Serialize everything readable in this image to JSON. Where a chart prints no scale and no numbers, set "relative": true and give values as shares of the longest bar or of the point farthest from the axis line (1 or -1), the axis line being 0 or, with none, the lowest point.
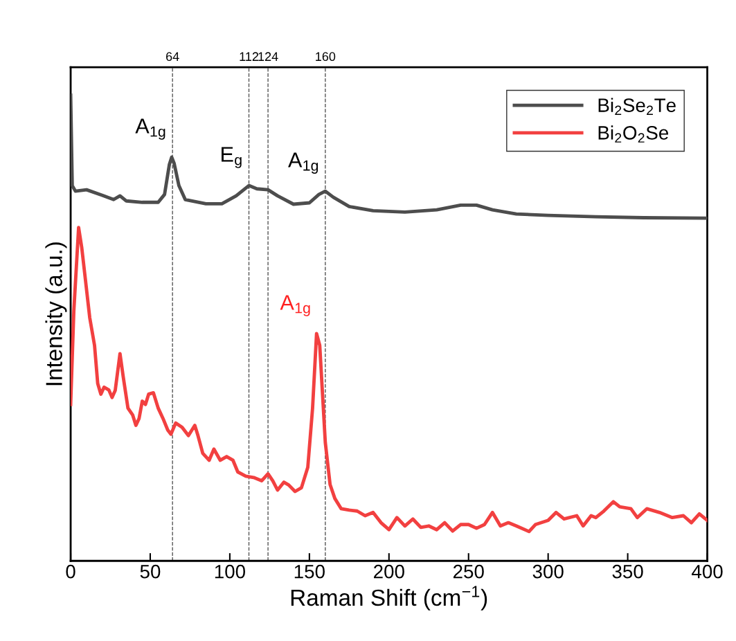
{
  "chart_data": {
    "type": "line",
    "relative": true,
    "xlabel": "Raman Shift (cm$^{−1}$)",
    "ylabel": "Intensity (a.u.)",
    "xlim": [
      0,
      400
    ],
    "xticks": [
      0,
      50,
      100,
      150,
      200,
      250,
      300,
      350,
      400
    ],
    "x2lim": [
      0,
      400
    ],
    "x2ticks": [
      64,
      112,
      124,
      160
    ],
    "legend": "top right",
    "grid": false,
    "marker": "none",
    "line_style": "solid",
    "ref_lines": [
      {
        "axis": "x",
        "value": 64,
        "color": "#555555",
        "line_style": "dashed"
      },
      {
        "axis": "x",
        "value": 112,
        "color": "#555555",
        "line_style": "dashed"
      },
      {
        "axis": "x",
        "value": 124,
        "color": "#555555",
        "line_style": "dashed"
      },
      {
        "axis": "x",
        "value": 160,
        "color": "#555555",
        "line_style": "dashed"
      }
    ],
    "annotations": [
      {
        "text": "A$_{1g}$",
        "x": 64,
        "y": 0.867
      },
      {
        "text": "E$_{g}$",
        "x": 112,
        "y": 0.806
      },
      {
        "text": "A$_{1g}$",
        "x": 160,
        "y": 0.794
      },
      {
        "text": "A$_{1g}$",
        "x": 155,
        "y": 0.488
      }
    ],
    "series": [
      {
        "name": "Bi$_{2}$Se$_{2}$Te",
        "color": "#4d4d4d",
        "x": [
          0,
          1,
          3,
          10,
          20,
          27,
          31,
          35,
          45,
          55,
          59,
          62,
          63.5,
          65,
          68,
          72,
          85,
          95,
          104,
          112,
          117,
          124,
          130,
          140,
          150,
          156,
          160,
          165,
          175,
          190,
          210,
          230,
          245,
          255,
          265,
          280,
          300,
          330,
          360,
          400
        ],
        "values": [
          1.0,
          0.806,
          0.794,
          0.797,
          0.785,
          0.776,
          0.784,
          0.773,
          0.77,
          0.77,
          0.787,
          0.851,
          0.867,
          0.854,
          0.806,
          0.776,
          0.767,
          0.767,
          0.784,
          0.806,
          0.799,
          0.797,
          0.784,
          0.766,
          0.769,
          0.787,
          0.794,
          0.781,
          0.761,
          0.752,
          0.749,
          0.754,
          0.764,
          0.764,
          0.754,
          0.745,
          0.742,
          0.739,
          0.737,
          0.736
        ]
      },
      {
        "name": "Bi$_{2}$O$_{2}$Se",
        "color": "#f24040",
        "x": [
          0,
          2,
          5,
          7,
          9,
          12,
          15,
          17,
          19,
          21,
          24,
          26,
          28,
          31,
          33,
          36,
          39,
          41,
          43,
          45,
          47,
          49,
          52,
          55,
          58,
          61,
          63,
          66,
          70,
          74,
          78,
          80,
          83,
          87,
          90,
          94,
          98,
          102,
          105,
          110,
          115,
          120,
          124,
          127,
          130,
          134,
          137,
          141,
          145,
          149,
          152,
          154.5,
          156.5,
          158,
          160,
          163,
          166,
          170,
          175,
          180,
          185,
          190,
          195,
          200,
          205,
          210,
          215,
          220,
          225,
          230,
          235,
          240,
          245,
          250,
          255,
          260,
          265,
          270,
          275,
          280,
          288,
          292,
          300,
          305,
          310,
          318,
          322,
          327,
          330,
          335,
          341,
          345,
          352,
          356,
          362,
          370,
          378,
          385,
          390,
          395,
          400
        ],
        "values": [
          0.336,
          0.537,
          0.716,
          0.672,
          0.612,
          0.522,
          0.463,
          0.381,
          0.358,
          0.373,
          0.367,
          0.351,
          0.366,
          0.445,
          0.396,
          0.328,
          0.313,
          0.291,
          0.306,
          0.343,
          0.336,
          0.358,
          0.361,
          0.328,
          0.306,
          0.281,
          0.272,
          0.296,
          0.287,
          0.269,
          0.291,
          0.269,
          0.231,
          0.216,
          0.24,
          0.216,
          0.224,
          0.216,
          0.191,
          0.182,
          0.179,
          0.172,
          0.187,
          0.172,
          0.152,
          0.169,
          0.163,
          0.149,
          0.157,
          0.201,
          0.328,
          0.488,
          0.463,
          0.373,
          0.254,
          0.164,
          0.134,
          0.112,
          0.109,
          0.107,
          0.097,
          0.104,
          0.082,
          0.067,
          0.093,
          0.075,
          0.09,
          0.072,
          0.075,
          0.067,
          0.082,
          0.064,
          0.078,
          0.078,
          0.07,
          0.078,
          0.104,
          0.075,
          0.082,
          0.075,
          0.063,
          0.078,
          0.087,
          0.104,
          0.09,
          0.097,
          0.075,
          0.097,
          0.093,
          0.107,
          0.127,
          0.116,
          0.112,
          0.093,
          0.112,
          0.104,
          0.093,
          0.097,
          0.082,
          0.101,
          0.087
        ]
      }
    ]
  }
}
